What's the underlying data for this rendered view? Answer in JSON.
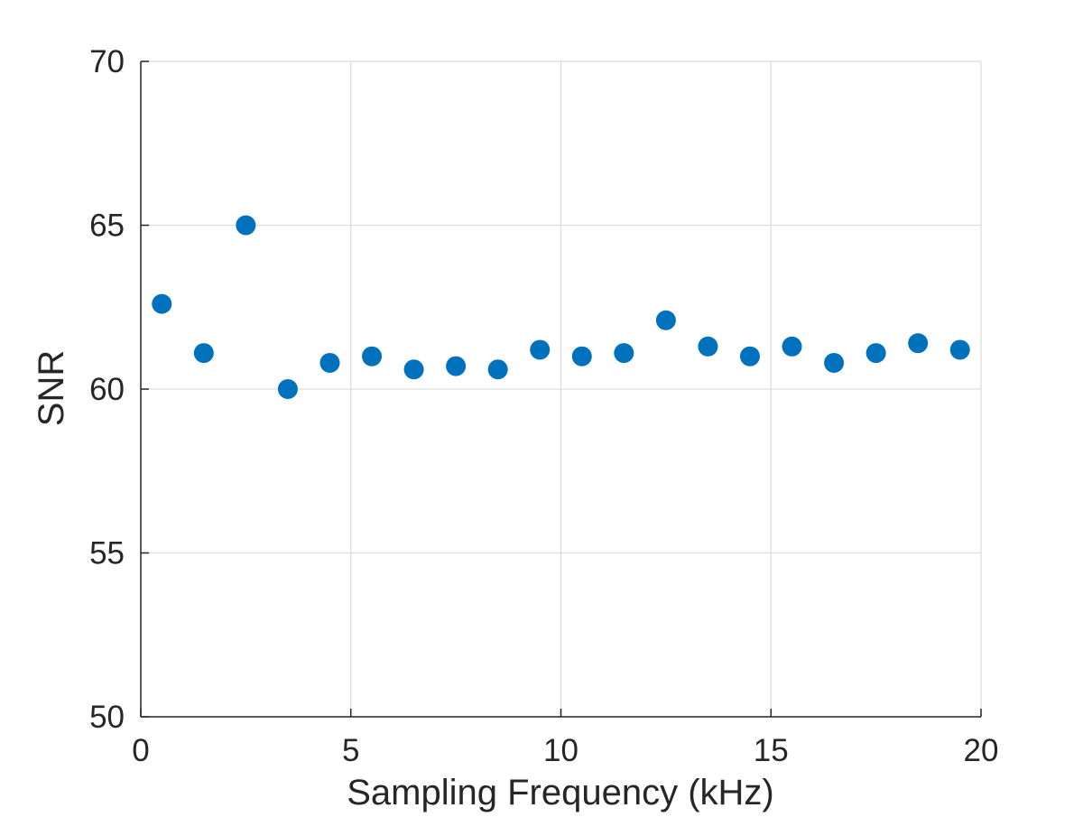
{
  "chart_data": {
    "type": "scatter",
    "title": "",
    "xlabel": "Sampling Frequency (kHz)",
    "ylabel": "SNR",
    "xlim": [
      0,
      20
    ],
    "ylim": [
      50,
      70
    ],
    "xticks": [
      0,
      5,
      10,
      15,
      20
    ],
    "yticks": [
      50,
      55,
      60,
      65,
      70
    ],
    "grid": true,
    "marker_color": "#0072BD",
    "grid_color": "#dcdcdc",
    "axis_color": "#262626",
    "series": [
      {
        "x": [
          0.5,
          1.5,
          2.5,
          3.5,
          4.5,
          5.5,
          6.5,
          7.5,
          8.5,
          9.5,
          10.5,
          11.5,
          12.5,
          13.5,
          14.5,
          15.5,
          16.5,
          17.5,
          18.5,
          19.5
        ],
        "y": [
          62.6,
          61.1,
          65.0,
          60.0,
          60.8,
          61.0,
          60.6,
          60.7,
          60.6,
          61.2,
          61.0,
          61.1,
          62.1,
          61.3,
          61.0,
          61.3,
          60.8,
          61.1,
          61.4,
          61.2
        ]
      }
    ]
  }
}
